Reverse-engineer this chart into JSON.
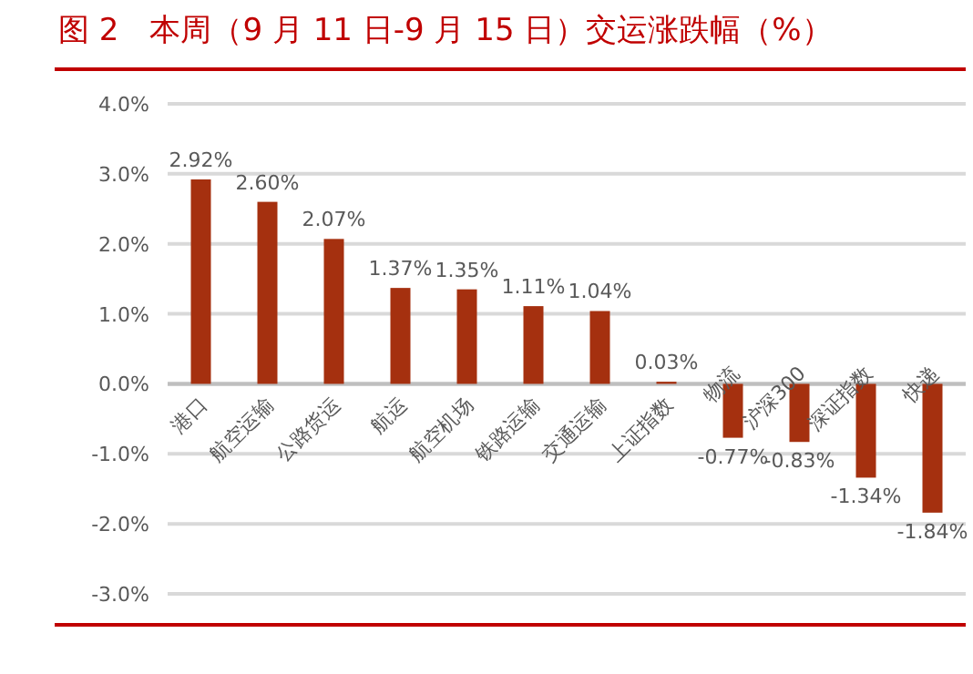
{
  "chart_data": {
    "type": "bar",
    "title": "图 2　本周（9 月 11 日-9 月 15 日）交运涨跌幅（%）",
    "categories": [
      "港口",
      "航空运输",
      "公路货运",
      "航运",
      "航空机场",
      "铁路运输",
      "交通运输",
      "上证指数",
      "物流",
      "沪深300",
      "深证指数",
      "快递"
    ],
    "values": [
      2.92,
      2.6,
      2.07,
      1.37,
      1.35,
      1.11,
      1.04,
      0.03,
      -0.77,
      -0.83,
      -1.34,
      -1.84
    ],
    "value_labels": [
      "2.92%",
      "2.60%",
      "2.07%",
      "1.37%",
      "1.35%",
      "1.11%",
      "1.04%",
      "0.03%",
      "-0.77%",
      "-0.83%",
      "-1.34%",
      "-1.84%"
    ],
    "color": "#a5300f",
    "ylim": [
      -3,
      4
    ],
    "yticks": [
      {
        "value": -3,
        "label": "-3.0%"
      },
      {
        "value": -2,
        "label": "-2.0%"
      },
      {
        "value": -1,
        "label": "-1.0%"
      },
      {
        "value": 0,
        "label": "0.0%"
      },
      {
        "value": 1,
        "label": "1.0%"
      },
      {
        "value": 2,
        "label": "2.0%"
      },
      {
        "value": 3,
        "label": "3.0%"
      },
      {
        "value": 4,
        "label": "4.0%"
      }
    ],
    "grid": "y"
  }
}
